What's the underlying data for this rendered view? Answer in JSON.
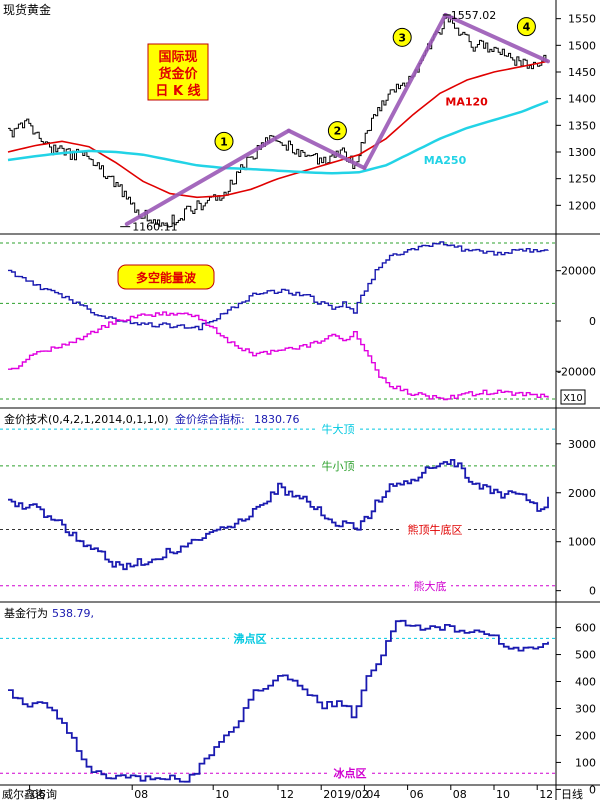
{
  "colors": {
    "price": "#000000",
    "ma120": "#e00000",
    "ma250": "#22d3e6",
    "trend": "#9b59b6",
    "bull": "#1a1ab0",
    "bear": "#e000e0",
    "index": "#1a1ab0",
    "grid_green": "#2ca02c",
    "grid_cyan": "#00c8e0",
    "grid_magenta": "#d000d0",
    "grid_dark": "#333333",
    "label_red": "#e00000",
    "badge_yellow": "#ffff00"
  },
  "header": {
    "title": "现货黄金"
  },
  "chart_data": [
    {
      "type": "line",
      "panel": "price",
      "title_box": [
        "国际现",
        "货金价",
        "日 K 线"
      ],
      "ylim": [
        1150,
        1570
      ],
      "yticks": [
        1200,
        1250,
        1300,
        1350,
        1400,
        1450,
        1500,
        1550
      ],
      "x_index_range": [
        0,
        100
      ],
      "series": [
        {
          "name": "",
          "role": "price",
          "x": [
            0,
            2,
            4,
            6,
            8,
            10,
            12,
            14,
            16,
            18,
            20,
            22,
            24,
            26,
            28,
            30,
            32,
            34,
            36,
            38,
            40,
            42,
            44,
            46,
            48,
            50,
            52,
            54,
            56,
            58,
            60,
            62,
            64,
            66,
            68,
            70,
            72,
            74,
            76,
            78,
            80,
            81,
            82,
            84,
            86,
            88,
            90,
            92,
            94,
            96,
            98,
            100
          ],
          "values": [
            1335,
            1345,
            1355,
            1320,
            1305,
            1300,
            1295,
            1300,
            1280,
            1255,
            1240,
            1210,
            1190,
            1175,
            1165,
            1170,
            1180,
            1195,
            1200,
            1210,
            1220,
            1250,
            1280,
            1300,
            1320,
            1330,
            1310,
            1300,
            1290,
            1285,
            1290,
            1300,
            1275,
            1330,
            1370,
            1400,
            1420,
            1430,
            1460,
            1500,
            1530,
            1557,
            1545,
            1520,
            1500,
            1500,
            1490,
            1485,
            1470,
            1465,
            1470,
            1475
          ]
        },
        {
          "name": "MA120",
          "role": "ma120",
          "x": [
            0,
            5,
            10,
            15,
            20,
            25,
            30,
            35,
            40,
            45,
            50,
            55,
            60,
            65,
            70,
            75,
            80,
            85,
            90,
            95,
            100
          ],
          "values": [
            1300,
            1312,
            1320,
            1310,
            1280,
            1245,
            1222,
            1215,
            1218,
            1230,
            1250,
            1265,
            1280,
            1295,
            1325,
            1370,
            1410,
            1435,
            1450,
            1460,
            1470
          ]
        },
        {
          "name": "MA250",
          "role": "ma250",
          "x": [
            0,
            5,
            10,
            15,
            20,
            25,
            30,
            35,
            40,
            45,
            50,
            55,
            60,
            65,
            70,
            75,
            80,
            85,
            90,
            95,
            100
          ],
          "values": [
            1285,
            1292,
            1298,
            1302,
            1300,
            1295,
            1285,
            1275,
            1270,
            1268,
            1265,
            1262,
            1260,
            1262,
            1275,
            1300,
            1325,
            1345,
            1360,
            1375,
            1395
          ]
        }
      ],
      "trend_lines": [
        {
          "label": "1",
          "x": [
            22,
            52
          ],
          "values": [
            1165,
            1340
          ]
        },
        {
          "label": "2",
          "x": [
            52,
            66
          ],
          "values": [
            1340,
            1270
          ]
        },
        {
          "label": "3",
          "x": [
            66,
            81
          ],
          "values": [
            1270,
            1557
          ]
        },
        {
          "label": "4",
          "x": [
            81,
            100
          ],
          "values": [
            1557,
            1470
          ]
        }
      ],
      "badges": [
        {
          "label": "1",
          "x": 40,
          "y": 1320
        },
        {
          "label": "2",
          "x": 61,
          "y": 1340
        },
        {
          "label": "3",
          "x": 73,
          "y": 1515
        },
        {
          "label": "4",
          "x": 96,
          "y": 1535
        }
      ],
      "annotations": [
        {
          "text": "1557.02",
          "x": 82,
          "y": 1557
        },
        {
          "text": "1160.11",
          "x": 23,
          "y": 1160
        },
        {
          "text": "MA120",
          "x": 81,
          "y": 1395
        },
        {
          "text": "MA250",
          "x": 77,
          "y": 1285
        }
      ]
    },
    {
      "type": "line",
      "panel": "volume",
      "title_box": "多空能量波",
      "unit": "X10",
      "ylim": [
        -33000,
        33000
      ],
      "yticks": [
        20000,
        0,
        -20000
      ],
      "ref_lines": [
        31000,
        7000,
        -31000
      ],
      "x_index_range": [
        0,
        100
      ],
      "series": [
        {
          "name": "",
          "role": "bull",
          "x": [
            0,
            5,
            10,
            15,
            20,
            25,
            30,
            35,
            40,
            45,
            50,
            55,
            60,
            62,
            64,
            66,
            68,
            70,
            75,
            80,
            85,
            90,
            95,
            100
          ],
          "values": [
            20000,
            14000,
            10000,
            4000,
            0,
            -1000,
            -2000,
            -3000,
            3000,
            10000,
            12000,
            10000,
            5000,
            7000,
            4000,
            12000,
            20000,
            25000,
            29000,
            31000,
            28000,
            27000,
            28000,
            28000
          ]
        },
        {
          "name": "",
          "role": "bear",
          "x": [
            0,
            5,
            10,
            15,
            20,
            25,
            30,
            35,
            40,
            45,
            50,
            55,
            60,
            62,
            64,
            66,
            68,
            70,
            75,
            80,
            85,
            90,
            95,
            100
          ],
          "values": [
            -20000,
            -13000,
            -10000,
            -5000,
            0,
            2000,
            3000,
            2000,
            -7000,
            -13000,
            -12000,
            -10000,
            -6000,
            -8000,
            -5000,
            -12000,
            -20000,
            -25000,
            -29000,
            -31000,
            -29000,
            -28000,
            -29000,
            -30000
          ]
        }
      ]
    },
    {
      "type": "line",
      "panel": "gold-index",
      "title": "金价技术(0,4,2,1,2014,0,1,1,0)",
      "indicator_label": "金价综合指标:",
      "indicator_value": "1830.76",
      "ylim": [
        -150,
        3650
      ],
      "yticks": [
        3000,
        2000,
        1000,
        0
      ],
      "ref_lines": [
        {
          "label": "牛大顶",
          "value": 3300,
          "style": "cyan"
        },
        {
          "label": "牛小顶",
          "value": 2550,
          "style": "green"
        },
        {
          "label": "熊顶牛底区",
          "value": 1250,
          "style": "dark"
        },
        {
          "label": "熊大底",
          "value": 100,
          "style": "magenta"
        }
      ],
      "x_index_range": [
        0,
        100
      ],
      "series": [
        {
          "name": "",
          "role": "index",
          "x": [
            0,
            5,
            10,
            15,
            20,
            25,
            30,
            35,
            40,
            45,
            50,
            55,
            60,
            65,
            70,
            75,
            80,
            82,
            85,
            88,
            90,
            95,
            98,
            100
          ],
          "values": [
            1800,
            1700,
            1300,
            900,
            500,
            600,
            800,
            1100,
            1300,
            1600,
            2100,
            1900,
            1400,
            1300,
            2100,
            2300,
            2600,
            2700,
            2300,
            2100,
            2000,
            1900,
            1700,
            1830
          ]
        }
      ]
    },
    {
      "type": "line",
      "panel": "fund",
      "title": "基金行为",
      "indicator_value": "538.79,",
      "ylim": [
        20,
        680
      ],
      "yticks": [
        600,
        500,
        400,
        300,
        200,
        100,
        0
      ],
      "ref_lines": [
        {
          "label": "沸点区",
          "value": 560,
          "style": "cyan"
        },
        {
          "label": "冰点区",
          "value": 60,
          "style": "magenta"
        }
      ],
      "x_index_range": [
        0,
        100
      ],
      "series": [
        {
          "name": "",
          "role": "fund",
          "x": [
            0,
            3,
            6,
            10,
            15,
            18,
            22,
            25,
            30,
            33,
            36,
            40,
            42,
            45,
            50,
            55,
            58,
            62,
            64,
            66,
            68,
            70,
            72,
            75,
            80,
            85,
            90,
            92,
            95,
            100
          ],
          "values": [
            370,
            300,
            340,
            250,
            70,
            50,
            50,
            40,
            40,
            30,
            100,
            200,
            230,
            350,
            420,
            370,
            310,
            320,
            260,
            400,
            450,
            540,
            620,
            600,
            600,
            590,
            560,
            530,
            520,
            540
          ]
        }
      ],
      "xticks": [
        {
          "label": "06",
          "x": 4
        },
        {
          "label": "08",
          "x": 23
        },
        {
          "label": "10",
          "x": 38
        },
        {
          "label": "12",
          "x": 50
        },
        {
          "label": "2019/02",
          "x": 58
        },
        {
          "label": "04",
          "x": 66
        },
        {
          "label": "06",
          "x": 74
        },
        {
          "label": "08",
          "x": 82
        },
        {
          "label": "10",
          "x": 90
        },
        {
          "label": "12",
          "x": 98
        }
      ],
      "footer_left": "威尔鑫咨询",
      "footer_right": "日线"
    }
  ]
}
